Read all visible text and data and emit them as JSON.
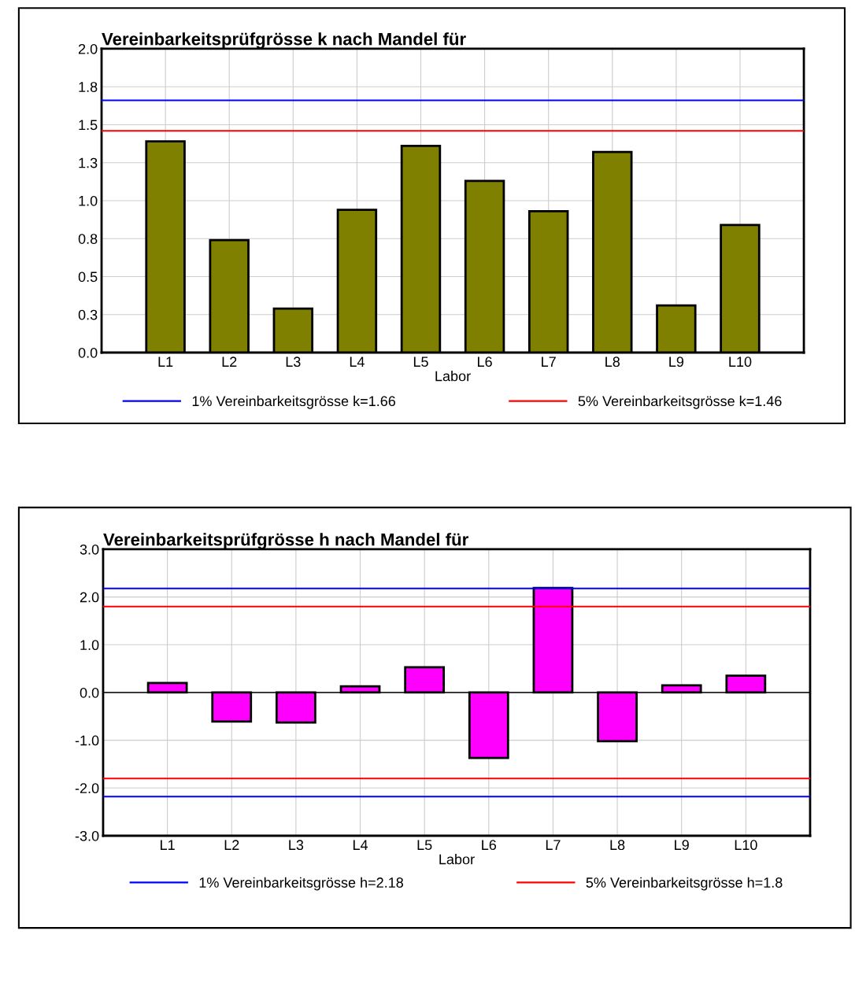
{
  "chart_data": [
    {
      "type": "bar",
      "title": "Vereinbarkeitsprüfgrösse k nach Mandel für",
      "xlabel": "Labor",
      "categories": [
        "L1",
        "L2",
        "L3",
        "L4",
        "L5",
        "L6",
        "L7",
        "L8",
        "L9",
        "L10"
      ],
      "values": [
        1.39,
        0.74,
        0.29,
        0.94,
        1.36,
        1.13,
        0.93,
        1.32,
        0.31,
        0.84
      ],
      "color": "#808000",
      "ylim": [
        0,
        2.0
      ],
      "yticks": [
        {
          "value": 0,
          "label": "0.0"
        },
        {
          "value": 0.25,
          "label": "0.3"
        },
        {
          "value": 0.5,
          "label": "0.5"
        },
        {
          "value": 0.75,
          "label": "0.8"
        },
        {
          "value": 1.0,
          "label": "1.0"
        },
        {
          "value": 1.25,
          "label": "1.3"
        },
        {
          "value": 1.5,
          "label": "1.5"
        },
        {
          "value": 1.75,
          "label": "1.8"
        },
        {
          "value": 2.0,
          "label": "2.0"
        }
      ],
      "ref_lines": [
        {
          "axis": "y",
          "value": 1.66,
          "label": "1% Vereinbarkeitsgrösse k=1.66",
          "color": "#0000ff"
        },
        {
          "axis": "y",
          "value": 1.46,
          "label": "5% Vereinbarkeitsgrösse k=1.46",
          "color": "#ff0000"
        }
      ],
      "grid": true,
      "legend": "bottom"
    },
    {
      "type": "bar",
      "title": "Vereinbarkeitsprüfgrösse h nach Mandel für",
      "xlabel": "Labor",
      "categories": [
        "L1",
        "L2",
        "L3",
        "L4",
        "L5",
        "L6",
        "L7",
        "L8",
        "L9",
        "L10"
      ],
      "values": [
        0.2,
        -0.61,
        -0.63,
        0.13,
        0.53,
        -1.37,
        2.19,
        -1.02,
        0.15,
        0.35
      ],
      "color": "#ff00ff",
      "ylim": [
        -3.0,
        3.0
      ],
      "yticks": [
        {
          "value": -3,
          "label": "-3.0"
        },
        {
          "value": -2,
          "label": "-2.0"
        },
        {
          "value": -1,
          "label": "-1.0"
        },
        {
          "value": 0,
          "label": "0.0"
        },
        {
          "value": 1,
          "label": "1.0"
        },
        {
          "value": 2,
          "label": "2.0"
        },
        {
          "value": 3,
          "label": "3.0"
        }
      ],
      "ref_lines": [
        {
          "axis": "y",
          "value": 2.18,
          "label": "1% Vereinbarkeitsgrösse h=2.18",
          "color": "#0000ff"
        },
        {
          "axis": "y",
          "value": 1.8,
          "label": "5% Vereinbarkeitsgrösse h=1.8",
          "color": "#ff0000"
        },
        {
          "axis": "y",
          "value": -1.8,
          "color": "#ff0000"
        },
        {
          "axis": "y",
          "value": -2.18,
          "color": "#0000ff"
        }
      ],
      "grid": true,
      "legend": "bottom"
    }
  ]
}
